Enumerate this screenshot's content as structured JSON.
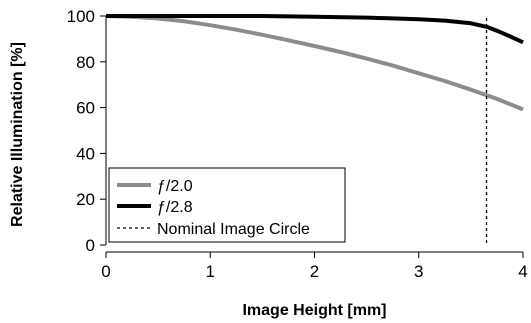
{
  "chart_data": {
    "type": "line",
    "xlabel": "Image Height [mm]",
    "ylabel": "Relative Illumination [%]",
    "xlim": [
      0,
      4
    ],
    "ylim": [
      0,
      100
    ],
    "x_ticks": [
      "0",
      "1",
      "2",
      "3",
      "4"
    ],
    "y_ticks": [
      "0",
      "20",
      "40",
      "60",
      "80",
      "100"
    ],
    "grid": false,
    "legend_position": "bottom-left",
    "series": [
      {
        "name": "ƒ/2.0",
        "color": "#8c8c8c",
        "x": [
          0,
          0.25,
          0.5,
          0.75,
          1.0,
          1.25,
          1.5,
          1.75,
          2.0,
          2.25,
          2.5,
          2.75,
          3.0,
          3.25,
          3.5,
          3.75,
          4.0
        ],
        "y": [
          100,
          99.7,
          98.9,
          97.7,
          96.0,
          94.0,
          91.8,
          89.4,
          86.9,
          84.3,
          81.4,
          78.4,
          75.0,
          71.6,
          67.8,
          63.8,
          59.2
        ]
      },
      {
        "name": "ƒ/2.8",
        "color": "#000000",
        "x": [
          0,
          0.5,
          1.0,
          1.5,
          2.0,
          2.5,
          3.0,
          3.25,
          3.5,
          3.65,
          3.75,
          3.85,
          4.0
        ],
        "y": [
          100,
          100,
          100,
          100,
          99.7,
          99.3,
          98.6,
          98.0,
          96.8,
          95.3,
          93.6,
          91.6,
          88.5
        ]
      },
      {
        "name": "Nominal Image Circle",
        "color": "#000000",
        "style": "dashed",
        "x_value": 3.65
      }
    ]
  }
}
